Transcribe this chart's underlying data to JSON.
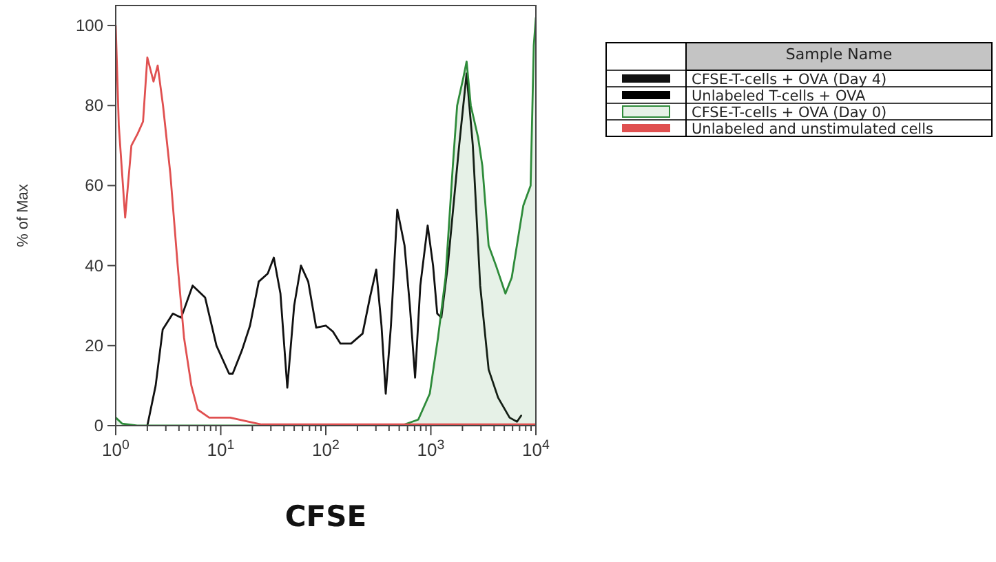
{
  "chart_data": {
    "type": "line",
    "xlabel": "CFSE",
    "ylabel": "% of Max",
    "legend_title": "Sample Name",
    "legend": "top right",
    "log": "x",
    "grid": false,
    "xlim": [
      1,
      10000
    ],
    "ylim": [
      0,
      105
    ],
    "xticks": [
      {
        "value": 1,
        "label": "10$^{0}$"
      },
      {
        "value": 2,
        "label": null
      },
      {
        "value": 3,
        "label": null
      },
      {
        "value": 4,
        "label": null
      },
      {
        "value": 5,
        "label": null
      },
      {
        "value": 6,
        "label": null
      },
      {
        "value": 7,
        "label": null
      },
      {
        "value": 8,
        "label": null
      },
      {
        "value": 9,
        "label": null
      },
      {
        "value": 10,
        "label": "10$^{1}$"
      },
      {
        "value": 20,
        "label": null
      },
      {
        "value": 30,
        "label": null
      },
      {
        "value": 40,
        "label": null
      },
      {
        "value": 50,
        "label": null
      },
      {
        "value": 60,
        "label": null
      },
      {
        "value": 70,
        "label": null
      },
      {
        "value": 80,
        "label": null
      },
      {
        "value": 90,
        "label": null
      },
      {
        "value": 100,
        "label": "10$^{2}$"
      },
      {
        "value": 200,
        "label": null
      },
      {
        "value": 300,
        "label": null
      },
      {
        "value": 400,
        "label": null
      },
      {
        "value": 500,
        "label": null
      },
      {
        "value": 600,
        "label": null
      },
      {
        "value": 700,
        "label": null
      },
      {
        "value": 800,
        "label": null
      },
      {
        "value": 900,
        "label": null
      },
      {
        "value": 1000,
        "label": "10$^{3}$"
      },
      {
        "value": 2000,
        "label": null
      },
      {
        "value": 3000,
        "label": null
      },
      {
        "value": 4000,
        "label": null
      },
      {
        "value": 5000,
        "label": null
      },
      {
        "value": 6000,
        "label": null
      },
      {
        "value": 7000,
        "label": null
      },
      {
        "value": 8000,
        "label": null
      },
      {
        "value": 9000,
        "label": null
      },
      {
        "value": 10000,
        "label": "10$^{4}$"
      }
    ],
    "yticks": [
      0,
      20,
      40,
      60,
      80,
      100
    ],
    "series": [
      {
        "name": "CFSE-T-cells + OVA (Day 4)",
        "color": "#111111",
        "x": [
          2.0,
          2.4,
          2.8,
          3.5,
          4.2,
          5.4,
          7.1,
          9.1,
          12,
          13,
          16,
          19,
          23,
          28,
          32,
          37,
          43,
          50,
          58,
          68,
          81,
          100,
          117,
          138,
          174,
          224,
          263,
          302,
          339,
          372,
          417,
          479,
          562,
          631,
          708,
          794,
          933,
          1050,
          1150,
          1260,
          1450,
          1860,
          2190,
          2510,
          2950,
          3550,
          4370,
          5620,
          6610,
          7240
        ],
        "values": [
          0,
          10,
          24,
          28,
          27,
          35,
          32,
          20,
          13,
          13,
          19,
          25,
          36,
          38,
          42,
          33,
          9.5,
          30,
          40,
          36,
          24.5,
          25,
          23.5,
          20.5,
          20.5,
          23,
          32,
          39,
          25,
          8,
          25,
          54,
          45,
          30,
          12,
          35,
          50,
          40,
          28,
          27,
          40,
          70,
          88,
          70,
          35,
          14,
          7,
          2,
          1,
          2.5
        ]
      },
      {
        "name": "Unlabeled T-cells + OVA",
        "color": "#000000",
        "values": [
          null
        ]
      },
      {
        "name": "CFSE-T-cells + OVA (Day 0)",
        "type": "area",
        "color": "#2e8b3a",
        "x": [
          1,
          1.15,
          1.6,
          500,
          562,
          759,
          977,
          1170,
          1380,
          1620,
          1780,
          2040,
          2190,
          2400,
          2820,
          3090,
          3550,
          4170,
          5130,
          5890,
          7590,
          8910,
          9550,
          10000
        ],
        "values": [
          2,
          0.5,
          0,
          0,
          0.3,
          1.5,
          8,
          22,
          37,
          65,
          80,
          87,
          91,
          80,
          72,
          65,
          45,
          40,
          33,
          37,
          55,
          60,
          95,
          102
        ]
      },
      {
        "name": "Unlabeled and unstimulated cells",
        "color": "#e05050",
        "x": [
          1,
          1.07,
          1.23,
          1.41,
          1.62,
          1.82,
          2.0,
          2.29,
          2.51,
          2.82,
          3.31,
          3.89,
          4.47,
          5.25,
          6.03,
          7.76,
          12.3,
          18.2,
          24.5,
          10000
        ],
        "values": [
          100,
          75,
          52,
          70,
          73,
          76,
          92,
          86,
          90,
          80,
          63,
          40,
          22,
          10,
          4,
          2,
          2,
          1,
          0.3,
          0.3
        ]
      }
    ]
  }
}
